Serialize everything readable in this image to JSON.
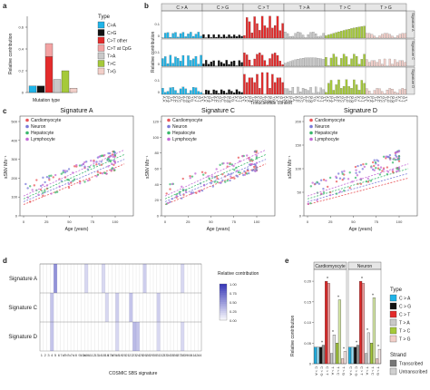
{
  "panels": {
    "a": "a",
    "b": "b",
    "c": "c",
    "d": "d",
    "e": "e"
  },
  "colors": {
    "CA": "#1fb4e8",
    "CG": "#111111",
    "CT": "#e32b2b",
    "CTpg": "#f3a3a3",
    "TA": "#c9c9c9",
    "TC": "#a5c93a",
    "TG": "#f2cfc9",
    "cardio": "#e8555a",
    "neuron": "#7a7ad8",
    "hep": "#3cb86e",
    "lymph": "#c46bd6"
  },
  "panel_a": {
    "ylabel": "Relative contribution",
    "xlabel": "Mutation type",
    "legend_title": "Type",
    "legend": [
      {
        "label": "C>A",
        "color_key": "CA"
      },
      {
        "label": "C>G",
        "color_key": "CG"
      },
      {
        "label": "C>T other",
        "color_key": "CT"
      },
      {
        "label": "C>T at CpG",
        "color_key": "CTpg"
      },
      {
        "label": "T>A",
        "color_key": "TA"
      },
      {
        "label": "T>C",
        "color_key": "TC"
      },
      {
        "label": "T>G",
        "color_key": "TG"
      }
    ],
    "yticks": [
      "0",
      "0.2",
      "0.4",
      "0.6"
    ]
  },
  "panel_b": {
    "ylabel": "Relative contribution",
    "xlabel": "Trinucleotide context",
    "headers": [
      "C > A",
      "C > G",
      "C > T",
      "T > A",
      "T > C",
      "T > G"
    ],
    "rows": [
      "Signature A",
      "Signature C",
      "Signature D"
    ],
    "yticks": [
      "0",
      "0.1"
    ]
  },
  "panel_c": [
    {
      "title": "Signature A",
      "ylabel": "sSNV Mb⁻¹",
      "xlabel": "Age (years)",
      "yticks": [
        "0",
        "100",
        "200",
        "300",
        "400",
        "500"
      ],
      "xticks": [
        "0",
        "25",
        "50",
        "75",
        "100"
      ]
    },
    {
      "title": "Signature C",
      "ylabel": "sSNV Mb⁻¹",
      "xlabel": "Age (years)",
      "yticks": [
        "0",
        "20",
        "40",
        "60",
        "80",
        "100",
        "120"
      ],
      "xticks": [
        "0",
        "25",
        "50",
        "75",
        "100"
      ]
    },
    {
      "title": "Signature D",
      "ylabel": "sSNV Mb⁻¹",
      "xlabel": "Age (years)",
      "yticks": [
        "0",
        "50",
        "100",
        "150",
        "200"
      ],
      "xticks": [
        "0",
        "25",
        "50",
        "75",
        "100"
      ]
    }
  ],
  "legend_c": [
    "Cardiomyocyte",
    "Neuron",
    "Hepatocyte",
    "Lymphocyte"
  ],
  "panel_d": {
    "rows": [
      "Signature A",
      "Signature C",
      "Signature D"
    ],
    "xlabel": "COSMIC SBS signature",
    "legend_title": "Relative contribution",
    "legend_ticks": [
      "1.00",
      "0.75",
      "0.50",
      "0.25",
      "0.00"
    ],
    "sbs": [
      "1",
      "2",
      "3",
      "4",
      "5",
      "6",
      "7a",
      "7b",
      "7c",
      "7d",
      "8",
      "9",
      "10a",
      "10b",
      "11",
      "12",
      "13",
      "14",
      "15",
      "16",
      "17a",
      "17b",
      "18",
      "19",
      "20",
      "21",
      "22",
      "23",
      "24",
      "25",
      "26",
      "28",
      "29",
      "30",
      "31",
      "32",
      "33",
      "34",
      "35",
      "36",
      "37",
      "38",
      "39",
      "40",
      "41",
      "42",
      "44"
    ]
  },
  "panel_e": {
    "ylabel": "Relative contribution",
    "facets": [
      "Cardiomyocyte",
      "Neuron"
    ],
    "types": [
      "C > A",
      "C > G",
      "C > T",
      "T > A",
      "T > C",
      "T > G"
    ],
    "yticks": [
      "0",
      "0.05",
      "0.10",
      "0.15",
      "0.20"
    ],
    "legend_type_title": "Type",
    "legend_strand_title": "Strand",
    "strands": [
      "Transcribed",
      "Untranscribed"
    ],
    "star": "*"
  },
  "chart_data": [
    {
      "type": "bar",
      "id": "a",
      "categories": [
        "C>A",
        "C>G",
        "C>T other",
        "C>T at CpG",
        "T>A",
        "T>C",
        "T>G"
      ],
      "values": [
        0.06,
        0.06,
        0.33,
        0.12,
        0.12,
        0.2,
        0.04
      ],
      "stack_ct_cpg_on": 0.33,
      "ylabel": "Relative contribution",
      "xlabel": "Mutation type",
      "ylim": [
        0,
        0.7
      ]
    },
    {
      "type": "bar",
      "id": "e",
      "facets": [
        "Cardiomyocyte",
        "Neuron"
      ],
      "categories": [
        "C > A",
        "C > G",
        "C > T",
        "T > A",
        "T > C",
        "T > G"
      ],
      "series": [
        {
          "name": "Transcribed",
          "values": [
            [
              0.04,
              0.04,
              0.2,
              0.025,
              0.05,
              0.012
            ],
            [
              0.04,
              0.04,
              0.2,
              0.025,
              0.05,
              0.012
            ]
          ]
        },
        {
          "name": "Untranscribed",
          "values": [
            [
              0.04,
              0.045,
              0.195,
              0.07,
              0.155,
              0.03
            ],
            [
              0.04,
              0.045,
              0.195,
              0.075,
              0.16,
              0.035
            ]
          ]
        }
      ],
      "ylim": [
        0,
        0.22
      ]
    }
  ]
}
